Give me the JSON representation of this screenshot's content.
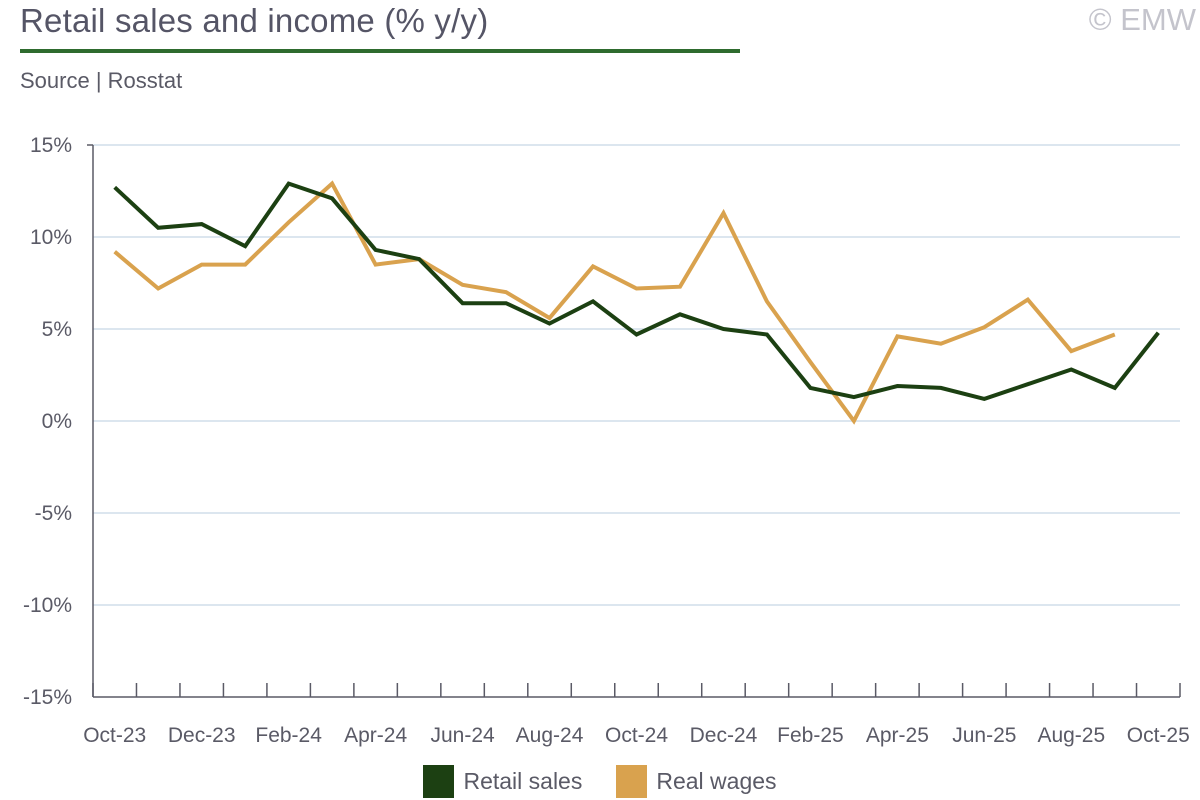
{
  "header": {
    "title": "Retail sales and income (% y/y)",
    "subtitle": "Source | Rosstat",
    "copyright": "© EMW"
  },
  "colors": {
    "retail": "#1c4012",
    "wages": "#d9a24e",
    "rule": "#2e6b2e",
    "grid": "#dce6ef",
    "axis": "#5a5a66"
  },
  "chart_data": {
    "type": "line",
    "x": [
      "Oct-23",
      "Nov-23",
      "Dec-23",
      "Jan-24",
      "Feb-24",
      "Mar-24",
      "Apr-24",
      "May-24",
      "Jun-24",
      "Jul-24",
      "Aug-24",
      "Sep-24",
      "Oct-24",
      "Nov-24",
      "Dec-24",
      "Jan-25",
      "Feb-25",
      "Mar-25",
      "Apr-25",
      "May-25",
      "Jun-25",
      "Jul-25",
      "Aug-25",
      "Sep-25",
      "Oct-25"
    ],
    "x_tick_labels": [
      "Oct-23",
      "Dec-23",
      "Feb-24",
      "Apr-24",
      "Jun-24",
      "Aug-24",
      "Oct-24",
      "Dec-24",
      "Feb-25",
      "Apr-25",
      "Jun-25",
      "Aug-25",
      "Oct-25"
    ],
    "y_tick_labels": [
      "15%",
      "10%",
      "5%",
      "0%",
      "-5%",
      "-10%",
      "-15%"
    ],
    "ylim": [
      -15,
      15
    ],
    "yticks": [
      15,
      10,
      5,
      0,
      -5,
      -10,
      -15
    ],
    "grid": true,
    "legend_position": "bottom-center",
    "series": [
      {
        "name": "Retail sales",
        "values": [
          12.7,
          10.5,
          10.7,
          9.5,
          12.9,
          12.1,
          9.3,
          8.8,
          6.4,
          6.4,
          5.3,
          6.5,
          4.7,
          5.8,
          5.0,
          4.7,
          1.8,
          1.3,
          1.9,
          1.8,
          1.2,
          2.0,
          2.8,
          1.8,
          4.8
        ]
      },
      {
        "name": "Real wages",
        "values": [
          9.2,
          7.2,
          8.5,
          8.5,
          10.8,
          12.9,
          8.5,
          8.8,
          7.4,
          7.0,
          5.6,
          8.4,
          7.2,
          7.3,
          11.3,
          6.5,
          3.2,
          0.0,
          4.6,
          4.2,
          5.1,
          6.6,
          3.8,
          4.7,
          null
        ]
      }
    ]
  }
}
